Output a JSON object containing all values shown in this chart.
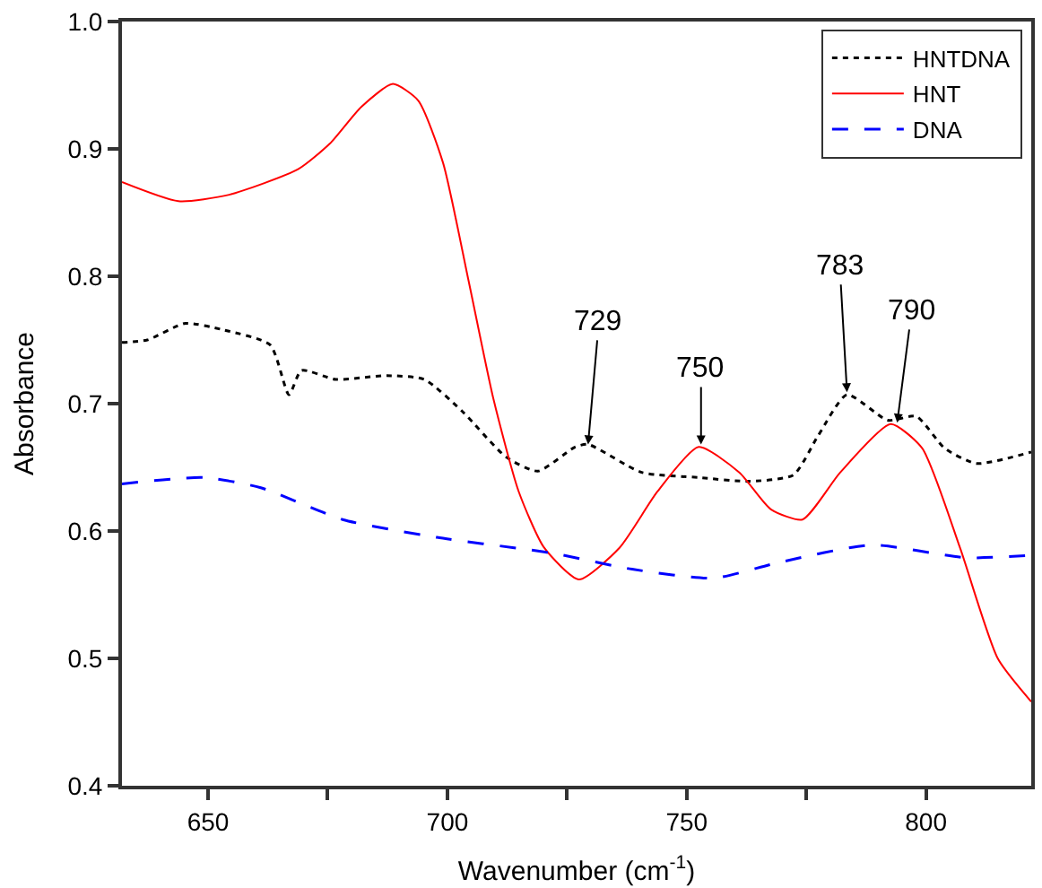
{
  "chart_data": {
    "type": "line",
    "xlabel": "Wavenumber (cm$^{-1}$)",
    "ylabel": "Absorbance",
    "xlim": [
      632,
      822
    ],
    "ylim": [
      0.4,
      1.0
    ],
    "xticks": [
      650,
      {
        "value": 675,
        "label": null
      },
      700,
      {
        "value": 725,
        "label": null
      },
      750,
      {
        "value": 775,
        "label": null
      },
      800
    ],
    "yticks": [
      {
        "value": 0.4,
        "label": "0.4"
      },
      0.5,
      0.6,
      0.7,
      0.8,
      0.9,
      {
        "value": 1.0,
        "label": "1.0"
      }
    ],
    "legend": "top right",
    "marker": "none",
    "series": [
      {
        "name": "HNTDNA",
        "color": "#000000",
        "line_style": "dotted",
        "x": [
          632,
          637.3,
          645.2,
          653.1,
          663,
          666.9,
          669.5,
          676.7,
          687.3,
          695.2,
          703.1,
          712.3,
          718.9,
          726.7,
          729.4,
          740.6,
          752.5,
          763,
          772.3,
          777.5,
          783.5,
          792,
          798,
          803.9,
          810.5,
          822
        ],
        "values": [
          0.748,
          0.75,
          0.763,
          0.758,
          0.746,
          0.707,
          0.726,
          0.719,
          0.722,
          0.719,
          0.694,
          0.658,
          0.647,
          0.666,
          0.668,
          0.646,
          0.642,
          0.639,
          0.644,
          0.675,
          0.707,
          0.687,
          0.69,
          0.665,
          0.653,
          0.662
        ]
      },
      {
        "name": "HNT",
        "color": "#ff0000",
        "line_style": "solid",
        "x": [
          632,
          643.8,
          654.4,
          668.8,
          675.4,
          682,
          688.6,
          693.9,
          699.1,
          704.4,
          709.6,
          714.9,
          720.2,
          727.5,
          736,
          743.9,
          752.5,
          761,
          767.6,
          774.2,
          782.1,
          792.6,
          799.2,
          807.1,
          815,
          822
        ],
        "values": [
          0.874,
          0.859,
          0.864,
          0.884,
          0.904,
          0.933,
          0.951,
          0.938,
          0.889,
          0.797,
          0.704,
          0.631,
          0.587,
          0.562,
          0.587,
          0.631,
          0.666,
          0.646,
          0.617,
          0.609,
          0.646,
          0.684,
          0.665,
          0.587,
          0.5,
          0.466
        ]
      },
      {
        "name": "DNA",
        "color": "#0000ff",
        "line_style": "dashed",
        "x": [
          632,
          649.1,
          661,
          678.1,
          697.8,
          717.6,
          722.8,
          738.6,
          755.7,
          768.9,
          788.6,
          808.4,
          822
        ],
        "values": [
          0.637,
          0.642,
          0.634,
          0.609,
          0.595,
          0.585,
          0.582,
          0.57,
          0.563,
          0.575,
          0.589,
          0.579,
          0.581
        ]
      }
    ],
    "annotations": [
      {
        "text": "729",
        "x": 729.4,
        "y": 0.668
      },
      {
        "text": "750",
        "x": 753,
        "y": 0.668
      },
      {
        "text": "783",
        "x": 783.5,
        "y": 0.709
      },
      {
        "text": "790",
        "x": 794,
        "y": 0.685
      }
    ]
  }
}
